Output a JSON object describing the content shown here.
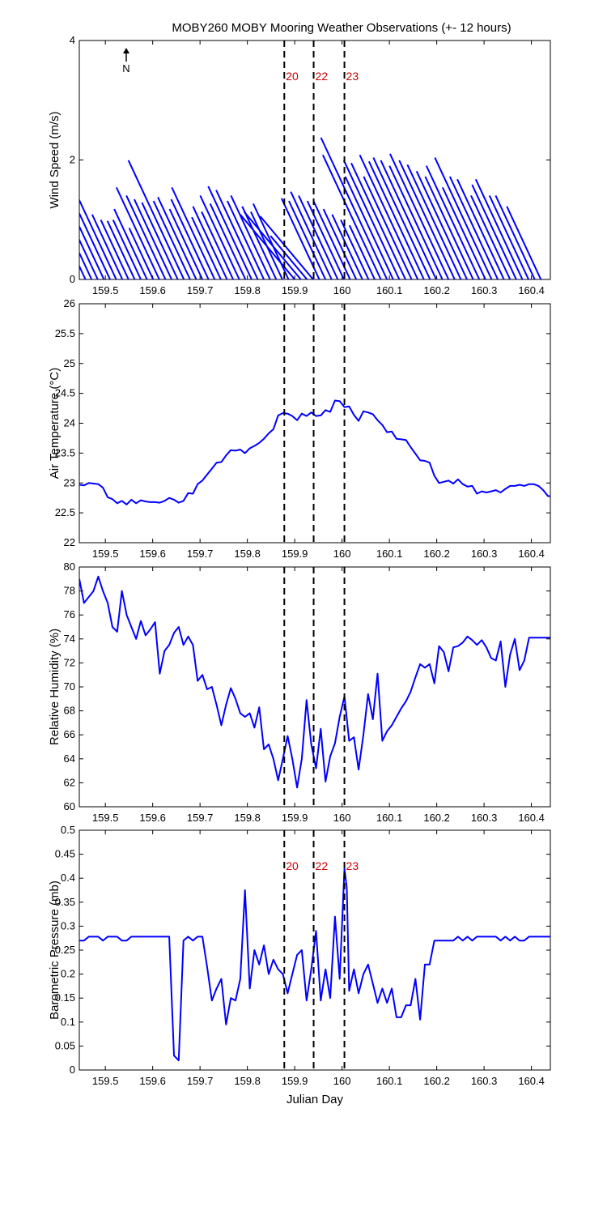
{
  "title": "MOBY260 MOBY Mooring Weather Observations (+- 12 hours)",
  "colors": {
    "series": "#0000ff",
    "vline_label": "#cc0000",
    "axis": "#000000"
  },
  "north_indicator": {
    "label": "N",
    "icon": "north-arrow-icon"
  },
  "vertical_markers": [
    {
      "x": 159.878,
      "label": "20"
    },
    {
      "x": 159.94,
      "label": "22"
    },
    {
      "x": 160.005,
      "label": "23"
    }
  ],
  "chart_data": [
    {
      "type": "vector",
      "id": "wind",
      "ylabel": "Wind Speed (m/s)",
      "xlabel": "",
      "xlim": [
        159.445,
        160.44
      ],
      "ylim": [
        0,
        4
      ],
      "xticks": [
        "159.5",
        "159.6",
        "159.7",
        "159.8",
        "159.9",
        "160",
        "160.1",
        "160.2",
        "160.3",
        "160.4"
      ],
      "yticks": [
        "0",
        "2",
        "4"
      ],
      "show_marker_labels": true,
      "grid": false,
      "start_x": [
        159.445,
        159.458,
        159.471,
        159.484,
        159.497,
        159.51,
        159.523,
        159.536,
        159.549,
        159.562,
        159.575,
        159.588,
        159.601,
        159.614,
        159.627,
        159.64,
        159.653,
        159.666,
        159.679,
        159.692,
        159.705,
        159.718,
        159.731,
        159.744,
        159.757,
        159.77,
        159.783,
        159.796,
        159.809,
        159.822,
        159.835,
        159.848,
        159.861,
        159.874,
        159.887,
        159.9,
        159.913,
        159.926,
        159.939,
        159.952,
        159.965,
        159.978,
        159.991,
        160.004,
        160.017,
        160.03,
        160.043,
        160.056,
        160.069,
        160.082,
        160.095,
        160.108,
        160.121,
        160.134,
        160.147,
        160.16,
        160.173,
        160.186,
        160.199,
        160.212,
        160.225,
        160.238,
        160.251,
        160.264,
        160.277,
        160.29,
        160.303,
        160.316,
        160.329,
        160.342,
        160.355,
        160.368,
        160.381,
        160.394,
        160.407,
        160.42
      ],
      "speed": [
        1.25,
        1.3,
        1.2,
        1.57,
        1.45,
        1.35,
        1.6,
        1.2,
        1.1,
        1.08,
        1.1,
        1.3,
        0.95,
        1.7,
        1.55,
        1.48,
        1.42,
        2.2,
        1.45,
        1.52,
        1.3,
        1.48,
        1.7,
        1.15,
        1.35,
        1.25,
        1.55,
        1.4,
        1.72,
        1.65,
        1.45,
        1.55,
        1.35,
        1.25,
        1.4,
        1.42,
        1.48,
        0.95,
        1.38,
        1.5,
        1.45,
        1.62,
        1.55,
        1.45,
        1.45,
        1.3,
        1.2,
        1.1,
        1.0,
        2.3,
        2.62,
        1.9,
        2.2,
        2.15,
        1.9,
        2.3,
        2.18,
        2.25,
        2.2,
        2.1,
        2.32,
        2.2,
        2.12,
        2.0,
        1.9,
        2.1,
        1.7,
        2.25,
        1.9,
        1.85,
        1.55,
        1.75,
        1.85,
        1.55,
        1.55,
        1.35
      ],
      "direction_deg": [
        155,
        155,
        155,
        155,
        155,
        155,
        155,
        155,
        155,
        155,
        155,
        155,
        155,
        155,
        155,
        155,
        155,
        155,
        155,
        155,
        155,
        155,
        155,
        155,
        155,
        155,
        155,
        155,
        155,
        155,
        155,
        155,
        155,
        155,
        155,
        140,
        140,
        140,
        140,
        155,
        155,
        155,
        155,
        155,
        155,
        155,
        155,
        155,
        155,
        155,
        155,
        155,
        155,
        155,
        155,
        155,
        155,
        155,
        155,
        155,
        155,
        155,
        155,
        155,
        155,
        155,
        155,
        155,
        155,
        155,
        155,
        155,
        155,
        155,
        155,
        155
      ]
    },
    {
      "type": "line",
      "id": "airtemp",
      "ylabel": "Air Temperature (°C)",
      "xlabel": "",
      "xlim": [
        159.445,
        160.44
      ],
      "ylim": [
        22,
        26
      ],
      "xticks": [
        "159.5",
        "159.6",
        "159.7",
        "159.8",
        "159.9",
        "160",
        "160.1",
        "160.2",
        "160.3",
        "160.4"
      ],
      "yticks": [
        "22",
        "22.5",
        "23",
        "23.5",
        "24",
        "24.5",
        "25",
        "25.5",
        "26"
      ],
      "show_marker_labels": false,
      "grid": false,
      "x": [
        159.445,
        159.455,
        159.465,
        159.475,
        159.485,
        159.495,
        159.505,
        159.515,
        159.525,
        159.535,
        159.545,
        159.555,
        159.565,
        159.575,
        159.585,
        159.595,
        159.605,
        159.615,
        159.625,
        159.635,
        159.645,
        159.655,
        159.665,
        159.675,
        159.685,
        159.695,
        159.705,
        159.715,
        159.725,
        159.735,
        159.745,
        159.755,
        159.765,
        159.775,
        159.785,
        159.795,
        159.805,
        159.815,
        159.825,
        159.835,
        159.845,
        159.855,
        159.865,
        159.875,
        159.885,
        159.895,
        159.905,
        159.915,
        159.925,
        159.935,
        159.945,
        159.955,
        159.965,
        159.975,
        159.985,
        159.995,
        160.005,
        160.015,
        160.025,
        160.035,
        160.045,
        160.055,
        160.065,
        160.075,
        160.085,
        160.095,
        160.105,
        160.115,
        160.125,
        160.135,
        160.145,
        160.155,
        160.165,
        160.175,
        160.185,
        160.195,
        160.205,
        160.215,
        160.225,
        160.235,
        160.245,
        160.255,
        160.265,
        160.275,
        160.285,
        160.295,
        160.305,
        160.315,
        160.325,
        160.335,
        160.345,
        160.355,
        160.365,
        160.375,
        160.385,
        160.395,
        160.405,
        160.415,
        160.425,
        160.435,
        160.44
      ],
      "y": [
        22.97,
        22.96,
        23.0,
        22.99,
        22.98,
        22.92,
        22.76,
        22.73,
        22.66,
        22.7,
        22.64,
        22.72,
        22.66,
        22.71,
        22.69,
        22.68,
        22.68,
        22.67,
        22.7,
        22.75,
        22.72,
        22.67,
        22.7,
        22.83,
        22.82,
        22.98,
        23.04,
        23.14,
        23.24,
        23.34,
        23.35,
        23.46,
        23.55,
        23.54,
        23.56,
        23.5,
        23.58,
        23.62,
        23.67,
        23.74,
        23.83,
        23.9,
        24.13,
        24.17,
        24.16,
        24.12,
        24.05,
        24.16,
        24.12,
        24.18,
        24.12,
        24.13,
        24.22,
        24.19,
        24.38,
        24.37,
        24.27,
        24.28,
        24.14,
        24.04,
        24.2,
        24.18,
        24.15,
        24.05,
        23.97,
        23.85,
        23.86,
        23.74,
        23.73,
        23.72,
        23.6,
        23.49,
        23.38,
        23.37,
        23.34,
        23.12,
        23.0,
        23.02,
        23.04,
        22.99,
        23.06,
        22.98,
        22.94,
        22.95,
        22.82,
        22.86,
        22.84,
        22.86,
        22.88,
        22.84,
        22.9,
        22.95,
        22.95,
        22.97,
        22.95,
        22.98,
        22.98,
        22.95,
        22.88,
        22.78,
        22.78
      ]
    },
    {
      "type": "line",
      "id": "humidity",
      "ylabel": "Relative Humidity (%)",
      "xlabel": "",
      "xlim": [
        159.445,
        160.44
      ],
      "ylim": [
        60,
        80
      ],
      "xticks": [
        "159.5",
        "159.6",
        "159.7",
        "159.8",
        "159.9",
        "160",
        "160.1",
        "160.2",
        "160.3",
        "160.4"
      ],
      "yticks": [
        "60",
        "62",
        "64",
        "66",
        "68",
        "70",
        "72",
        "74",
        "76",
        "78",
        "80"
      ],
      "show_marker_labels": false,
      "grid": false,
      "x": [
        159.445,
        159.455,
        159.465,
        159.475,
        159.485,
        159.495,
        159.505,
        159.515,
        159.525,
        159.535,
        159.545,
        159.555,
        159.565,
        159.575,
        159.585,
        159.595,
        159.605,
        159.615,
        159.625,
        159.635,
        159.645,
        159.655,
        159.665,
        159.675,
        159.685,
        159.695,
        159.705,
        159.715,
        159.725,
        159.735,
        159.745,
        159.755,
        159.765,
        159.775,
        159.785,
        159.795,
        159.805,
        159.815,
        159.825,
        159.835,
        159.845,
        159.855,
        159.865,
        159.875,
        159.885,
        159.895,
        159.905,
        159.915,
        159.925,
        159.935,
        159.945,
        159.955,
        159.965,
        159.975,
        159.985,
        159.995,
        160.005,
        160.015,
        160.025,
        160.035,
        160.045,
        160.055,
        160.065,
        160.075,
        160.085,
        160.095,
        160.105,
        160.115,
        160.125,
        160.135,
        160.145,
        160.155,
        160.165,
        160.175,
        160.185,
        160.195,
        160.205,
        160.215,
        160.225,
        160.235,
        160.245,
        160.255,
        160.265,
        160.275,
        160.285,
        160.295,
        160.305,
        160.315,
        160.325,
        160.335,
        160.345,
        160.355,
        160.365,
        160.375,
        160.385,
        160.395,
        160.405,
        160.415,
        160.425,
        160.435,
        160.44
      ],
      "y": [
        79.0,
        77.0,
        77.5,
        78.0,
        79.2,
        78.0,
        77.0,
        75.0,
        74.6,
        78.0,
        76.0,
        75.0,
        74.0,
        75.5,
        74.3,
        74.8,
        75.4,
        71.1,
        73.0,
        73.5,
        74.5,
        75.0,
        73.5,
        74.2,
        73.5,
        70.5,
        71.0,
        69.8,
        70.0,
        68.5,
        66.8,
        68.5,
        69.9,
        69.0,
        67.8,
        67.5,
        67.8,
        66.6,
        68.3,
        64.8,
        65.2,
        64.0,
        62.2,
        64.0,
        65.9,
        64.0,
        61.6,
        64.0,
        68.9,
        65.2,
        63.2,
        66.5,
        62.1,
        64.2,
        65.3,
        67.5,
        69.2,
        65.5,
        65.8,
        63.1,
        66.0,
        69.4,
        67.3,
        71.1,
        65.5,
        66.3,
        66.8,
        67.5,
        68.2,
        68.8,
        69.6,
        70.8,
        71.9,
        71.6,
        71.9,
        70.3,
        73.4,
        72.9,
        71.3,
        73.3,
        73.4,
        73.7,
        74.2,
        73.9,
        73.5,
        73.9,
        73.3,
        72.4,
        72.2,
        73.8,
        70.0,
        72.7,
        74.0,
        71.4,
        72.2,
        74.1,
        74.1,
        74.1,
        74.1,
        74.1,
        74.1
      ]
    },
    {
      "type": "line",
      "id": "pressure",
      "ylabel": "Barometric Pressure (mb)",
      "xlabel": "Julian Day",
      "xlim": [
        159.445,
        160.44
      ],
      "ylim": [
        0,
        0.5
      ],
      "xticks": [
        "159.5",
        "159.6",
        "159.7",
        "159.8",
        "159.9",
        "160",
        "160.1",
        "160.2",
        "160.3",
        "160.4"
      ],
      "yticks": [
        "0",
        "0.05",
        "0.1",
        "0.15",
        "0.2",
        "0.25",
        "0.3",
        "0.35",
        "0.4",
        "0.45",
        "0.5"
      ],
      "show_marker_labels": true,
      "grid": false,
      "x": [
        159.445,
        159.455,
        159.465,
        159.475,
        159.485,
        159.495,
        159.505,
        159.515,
        159.525,
        159.535,
        159.545,
        159.555,
        159.565,
        159.575,
        159.585,
        159.595,
        159.605,
        159.615,
        159.625,
        159.635,
        159.645,
        159.65,
        159.655,
        159.665,
        159.675,
        159.685,
        159.695,
        159.705,
        159.715,
        159.725,
        159.735,
        159.745,
        159.755,
        159.765,
        159.775,
        159.785,
        159.795,
        159.805,
        159.815,
        159.825,
        159.835,
        159.845,
        159.855,
        159.865,
        159.875,
        159.885,
        159.895,
        159.905,
        159.915,
        159.925,
        159.935,
        159.945,
        159.955,
        159.965,
        159.975,
        159.985,
        159.995,
        160.005,
        160.01,
        160.015,
        160.025,
        160.035,
        160.045,
        160.055,
        160.065,
        160.075,
        160.085,
        160.095,
        160.105,
        160.115,
        160.125,
        160.135,
        160.145,
        160.155,
        160.165,
        160.175,
        160.185,
        160.195,
        160.205,
        160.215,
        160.225,
        160.235,
        160.245,
        160.255,
        160.265,
        160.275,
        160.285,
        160.295,
        160.305,
        160.315,
        160.325,
        160.335,
        160.345,
        160.355,
        160.365,
        160.375,
        160.385,
        160.395,
        160.405,
        160.415,
        160.425,
        160.435,
        160.44
      ],
      "y": [
        0.27,
        0.27,
        0.278,
        0.278,
        0.278,
        0.27,
        0.278,
        0.278,
        0.278,
        0.27,
        0.27,
        0.278,
        0.278,
        0.278,
        0.278,
        0.278,
        0.278,
        0.278,
        0.278,
        0.278,
        0.03,
        0.025,
        0.02,
        0.27,
        0.278,
        0.27,
        0.278,
        0.278,
        0.215,
        0.145,
        0.17,
        0.19,
        0.095,
        0.15,
        0.145,
        0.19,
        0.375,
        0.17,
        0.25,
        0.22,
        0.26,
        0.2,
        0.23,
        0.21,
        0.2,
        0.16,
        0.2,
        0.24,
        0.25,
        0.145,
        0.21,
        0.29,
        0.145,
        0.21,
        0.15,
        0.32,
        0.19,
        0.42,
        0.38,
        0.165,
        0.21,
        0.16,
        0.2,
        0.22,
        0.18,
        0.14,
        0.17,
        0.14,
        0.17,
        0.11,
        0.11,
        0.135,
        0.135,
        0.19,
        0.105,
        0.22,
        0.22,
        0.27,
        0.27,
        0.27,
        0.27,
        0.27,
        0.278,
        0.27,
        0.278,
        0.27,
        0.278,
        0.278,
        0.278,
        0.278,
        0.278,
        0.27,
        0.278,
        0.27,
        0.278,
        0.27,
        0.27,
        0.278,
        0.278,
        0.278,
        0.278,
        0.278,
        0.278
      ]
    }
  ]
}
